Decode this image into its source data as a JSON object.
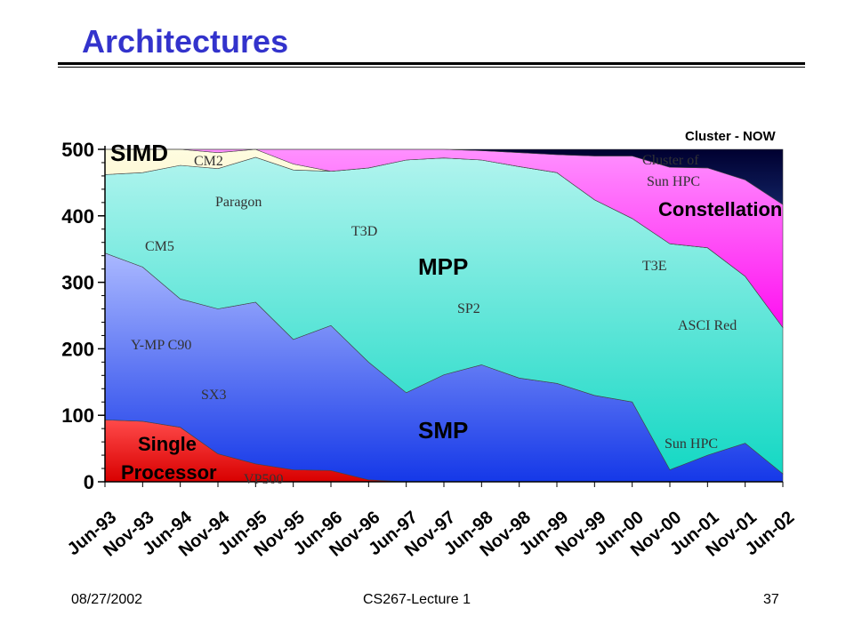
{
  "slide": {
    "title": "Architectures",
    "footer_date": "08/27/2002",
    "footer_course": "CS267-Lecture 1",
    "page_number": "37"
  },
  "chart_data": {
    "type": "area",
    "stacked": true,
    "title": "",
    "xlabel": "",
    "ylabel": "",
    "ylim": [
      0,
      500
    ],
    "yticks": [
      0,
      100,
      200,
      300,
      400,
      500
    ],
    "grid": false,
    "legend": "none (categories labelled inside areas)",
    "x": [
      "Jun-93",
      "Nov-93",
      "Jun-94",
      "Nov-94",
      "Jun-95",
      "Nov-95",
      "Jun-96",
      "Nov-96",
      "Jun-97",
      "Nov-97",
      "Jun-98",
      "Nov-98",
      "Jun-99",
      "Nov-99",
      "Jun-00",
      "Nov-00",
      "Jun-01",
      "Nov-01",
      "Jun-02"
    ],
    "series": [
      {
        "name": "Single Processor",
        "color": "#ff2020",
        "values": [
          93,
          91,
          82,
          42,
          27,
          18,
          17,
          3,
          0,
          0,
          0,
          0,
          0,
          0,
          0,
          0,
          0,
          0,
          0
        ]
      },
      {
        "name": "SMP",
        "color": "#3355ff",
        "values": [
          251,
          232,
          193,
          218,
          243,
          196,
          218,
          177,
          134,
          161,
          176,
          156,
          148,
          130,
          120,
          18,
          40,
          58,
          12
        ]
      },
      {
        "name": "MPP",
        "color": "#40e0d0",
        "values": [
          118,
          142,
          201,
          211,
          218,
          255,
          232,
          292,
          350,
          326,
          308,
          318,
          317,
          294,
          276,
          340,
          312,
          251,
          220
        ]
      },
      {
        "name": "SIMD",
        "color": "#f5f0c0",
        "values": [
          38,
          35,
          24,
          24,
          12,
          9,
          0,
          0,
          0,
          0,
          0,
          0,
          0,
          0,
          0,
          0,
          0,
          0,
          0
        ]
      },
      {
        "name": "Constellation",
        "color": "#ff40ff",
        "values": [
          0,
          0,
          0,
          5,
          0,
          22,
          33,
          28,
          16,
          13,
          14,
          21,
          27,
          66,
          94,
          115,
          120,
          145,
          185
        ]
      },
      {
        "name": "Cluster - NOW",
        "color": "#0a1450",
        "values": [
          0,
          0,
          0,
          0,
          0,
          0,
          0,
          0,
          0,
          0,
          2,
          5,
          8,
          10,
          10,
          27,
          28,
          46,
          83
        ]
      }
    ],
    "series_labels": [
      "SIMD",
      "MPP",
      "SMP",
      "Single",
      "Processor",
      "Constellation",
      "Cluster - NOW"
    ],
    "machine_labels": [
      "CM2",
      "Paragon",
      "CM5",
      "T3D",
      "Y-MP C90",
      "SX3",
      "VP500",
      "SP2",
      "T3E",
      "ASCI Red",
      "Cluster of",
      "Sun HPC",
      "Sun HPC"
    ]
  }
}
